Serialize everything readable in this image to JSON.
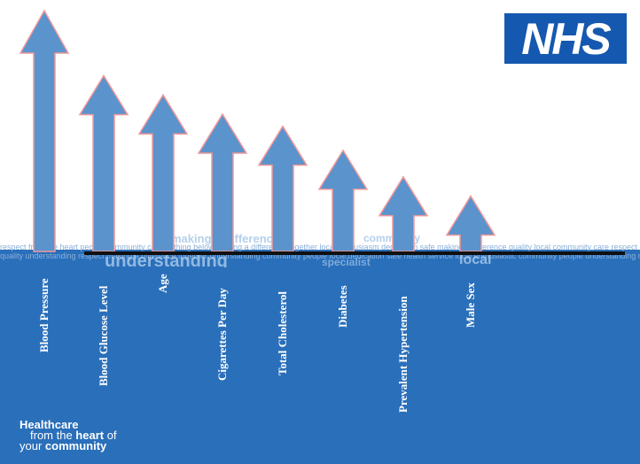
{
  "logo": {
    "text": "NHS"
  },
  "wordcloud": {
    "line1": "respect from the heart people community care nothing below making a difference together local enthusiasm dedication safe making a difference quality local community care respect people from the heart specialist safe health service local enthus respect from the heart personal",
    "line2": "quality understanding respect making a difference together understanding community people local dedication safe health service local enthusiastic community people understanding respect from the heart people understanding local community specialist together friendly",
    "words": [
      "making a difference",
      "community",
      "understanding",
      "specialist",
      "local",
      "together"
    ]
  },
  "factors": [
    {
      "label": "Blood Pressure",
      "strength": 1.0
    },
    {
      "label": "Blood Glucose Level",
      "strength": 0.73
    },
    {
      "label": "Age",
      "strength": 0.65
    },
    {
      "label": "Cigarettes Per Day",
      "strength": 0.57
    },
    {
      "label": "Total Cholesterol",
      "strength": 0.52
    },
    {
      "label": "Diabetes",
      "strength": 0.42
    },
    {
      "label": "Prevalent Hypertension",
      "strength": 0.31
    },
    {
      "label": "Male Sex",
      "strength": 0.23
    }
  ],
  "tagline": {
    "line1": "Healthcare",
    "line2_pre": "from the ",
    "line2_bold": "heart",
    "line2_post": " of",
    "line3_pre": "your ",
    "line3_bold": "community"
  },
  "colors": {
    "arrow_fill": "#5b93cc",
    "arrow_stroke": "#f2999a",
    "band": "#2a6fba",
    "logo": "#1558b0"
  }
}
